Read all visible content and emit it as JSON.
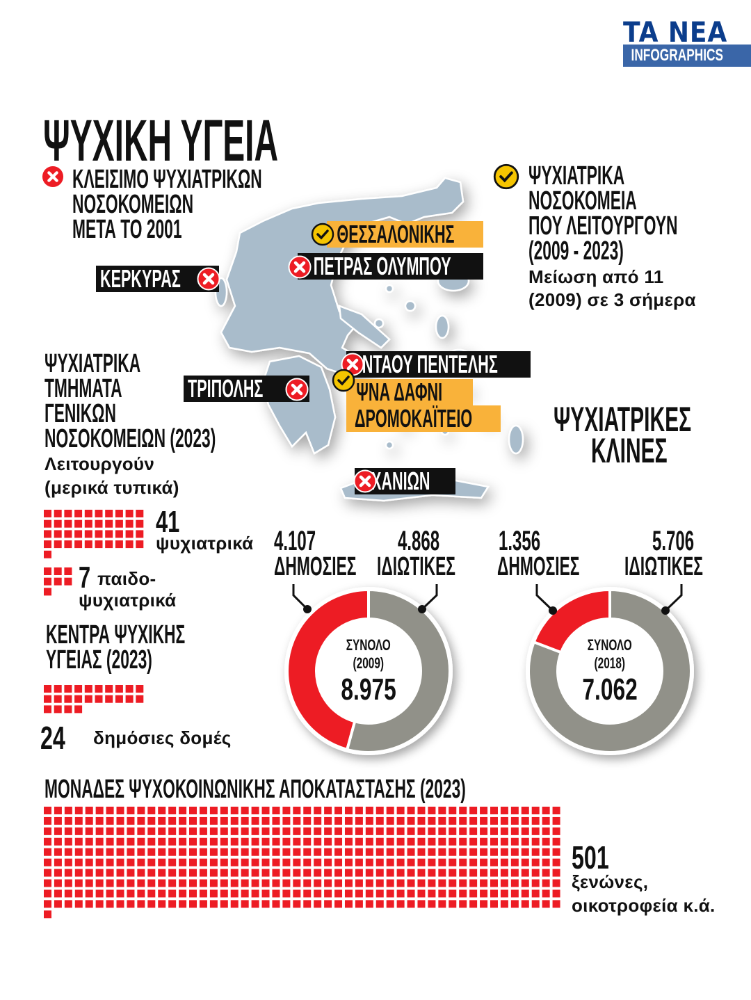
{
  "logo": {
    "brand": "TA NEA",
    "sub": "INFOGRAPHICS",
    "navy": "#0b3d8c",
    "band": "#3a66a8"
  },
  "title": "ΨΥΧΙΚΗ ΥΓΕΙΑ",
  "closures": {
    "icon": "x-circle-icon",
    "lines": [
      "ΚΛΕΙΣΙΜΟ ΨΥΧΙΑΤΡΙΚΩΝ",
      "ΝΟΣΟΚΟΜΕΙΩΝ",
      "ΜΕΤΑ ΤΟ 2001"
    ]
  },
  "operating": {
    "icon": "check-circle-icon",
    "lines": [
      "ΨΥΧΙΑΤΡΙΚΑ",
      "ΝΟΣΟΚΟΜΕΙΑ",
      "ΠΟΥ ΛΕΙΤΟΥΡΓΟΥΝ",
      "(2009 - 2023)"
    ],
    "note": [
      "Μείωση από 11",
      "(2009) σε 3 σήμερα"
    ]
  },
  "map_labels": {
    "thessaloniki": {
      "text": "ΘΕΣΣΑΛΟΝΙΚΗΣ",
      "status": "open"
    },
    "petras": {
      "text": "ΠΕΤΡΑΣ ΟΛΥΜΠΟΥ",
      "status": "closed"
    },
    "kerkyra": {
      "text": "ΚΕΡΚΥΡΑΣ",
      "status": "closed"
    },
    "tripoli": {
      "text": "ΤΡΙΠΟΛΗΣ",
      "status": "closed"
    },
    "ntaou": {
      "text": "ΝΤΑΟΥ ΠΕΝΤΕΛΗΣ",
      "status": "closed"
    },
    "dafni": {
      "text": "ΨΝΑ ΔΑΦΝΙ",
      "status": "open"
    },
    "dromokaiteio": {
      "text": "ΔΡΟΜΟΚΑΪΤΕΙΟ",
      "status": "open"
    },
    "chania": {
      "text": "ΧΑΝΙΩΝ",
      "status": "closed"
    }
  },
  "departments": {
    "lines": [
      "ΨΥΧΙΑΤΡΙΚΑ",
      "ΤΜΗΜΑΤΑ",
      "ΓΕΝΙΚΩΝ",
      "ΝΟΣΟΚΟΜΕΙΩΝ (2023)"
    ],
    "note": [
      "Λειτουργούν",
      "(μερικά τυπικά)"
    ],
    "psych_count": "41",
    "psych_label": "ψυχιατρικά",
    "child_count": "7",
    "child_label1": "παιδο-",
    "child_label2": "ψυχιατρικά"
  },
  "centers": {
    "lines": [
      "ΚΕΝΤΡΑ ΨΥΧΙΚΗΣ",
      "ΥΓΕΙΑΣ (2023)"
    ],
    "count": "24",
    "label": "δημόσιες δομές"
  },
  "beds": {
    "title": [
      "ΨΥΧΙΑΤΡΙΚΕΣ",
      "ΚΛΙΝΕΣ"
    ]
  },
  "rehab": {
    "title": "ΜΟΝΑΔΕΣ ΨΥΧΟΚΟΙΝΩΝΙΚΗΣ ΑΠΟΚΑΤΑΣΤΑΣΗΣ (2023)",
    "count": "501",
    "label": [
      "ξενώνες,",
      "οικοτροφεία κ.ά."
    ]
  },
  "colors": {
    "red": "#ed1c24",
    "grey": "#919189",
    "orange": "#f9b23a",
    "map": "#a9bccb",
    "check": "#f5c400"
  },
  "chart_data": [
    {
      "type": "pie",
      "variant": "donut",
      "center_label": "ΣΥΝΟΛΟ",
      "year": "(2009)",
      "total": "8.975",
      "categories": [
        "ΔΗΜΟΣΙΕΣ",
        "ΙΔΙΩΤΙΚΕΣ"
      ],
      "labels": [
        "4.107",
        "4.868"
      ],
      "values": [
        4107,
        4868
      ],
      "colors": [
        "#ed1c24",
        "#919189"
      ]
    },
    {
      "type": "pie",
      "variant": "donut",
      "center_label": "ΣΥΝΟΛΟ",
      "year": "(2018)",
      "total": "7.062",
      "categories": [
        "ΔΗΜΟΣΙΕΣ",
        "ΙΔΙΩΤΙΚΕΣ"
      ],
      "labels": [
        "1.356",
        "5.706"
      ],
      "values": [
        1356,
        5706
      ],
      "colors": [
        "#ed1c24",
        "#919189"
      ]
    },
    {
      "type": "waffle",
      "name": "psychiatric",
      "value": 41,
      "columns": 10
    },
    {
      "type": "waffle",
      "name": "child-psychiatric",
      "value": 7,
      "columns": 3
    },
    {
      "type": "waffle",
      "name": "public-structures",
      "value": 24,
      "columns": 10
    },
    {
      "type": "waffle",
      "name": "rehab-units",
      "value": 501,
      "columns": 50
    }
  ]
}
